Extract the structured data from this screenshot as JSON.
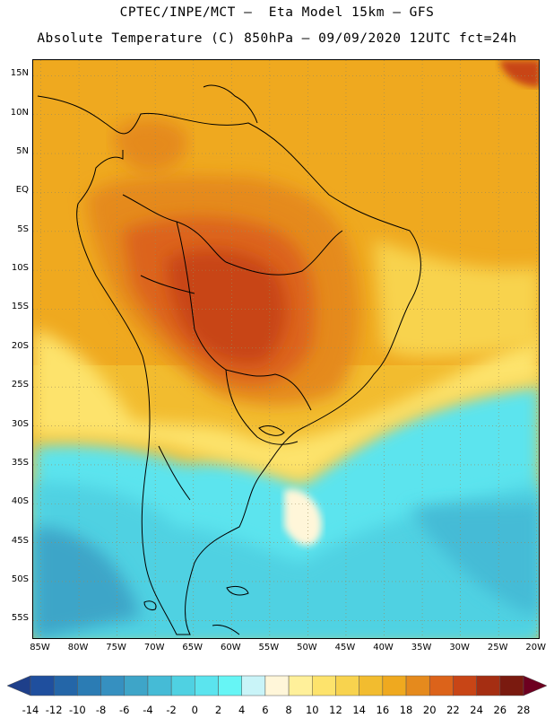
{
  "title_line1": "CPTEC/INPE/MCT –  Eta Model 15km – GFS",
  "title_line2": "Absolute Temperature (C) 850hPa – 09/09/2020 12UTC fct=24h",
  "map": {
    "lat_labels": [
      "15N",
      "10N",
      "5N",
      "EQ",
      "5S",
      "10S",
      "15S",
      "20S",
      "25S",
      "30S",
      "35S",
      "40S",
      "45S",
      "50S",
      "55S"
    ],
    "lon_labels": [
      "85W",
      "80W",
      "75W",
      "70W",
      "65W",
      "60W",
      "55W",
      "50W",
      "45W",
      "40W",
      "35W",
      "30W",
      "25W",
      "20W"
    ],
    "lat_range": [
      17,
      -57.5
    ],
    "lon_range": [
      -86,
      -19.5
    ],
    "grid": "dotted"
  },
  "colorbar": {
    "labels": [
      "-14",
      "-12",
      "-10",
      "-8",
      "-6",
      "-4",
      "-2",
      "0",
      "2",
      "4",
      "6",
      "8",
      "10",
      "12",
      "14",
      "16",
      "18",
      "20",
      "22",
      "24",
      "26",
      "28"
    ],
    "colors": [
      "#1e3f8a",
      "#1f4f9e",
      "#2466a8",
      "#2b7cb4",
      "#3690c0",
      "#3ea5c8",
      "#45bbd6",
      "#4fd1e2",
      "#5be4ee",
      "#66f5f5",
      "#c9f4f8",
      "#fff6d9",
      "#fff09a",
      "#fde36c",
      "#f8d34e",
      "#f2bc2f",
      "#efa91f",
      "#e58a1d",
      "#dc631a",
      "#c84516",
      "#a52e12",
      "#7a1a0f",
      "#6d0020"
    ]
  }
}
